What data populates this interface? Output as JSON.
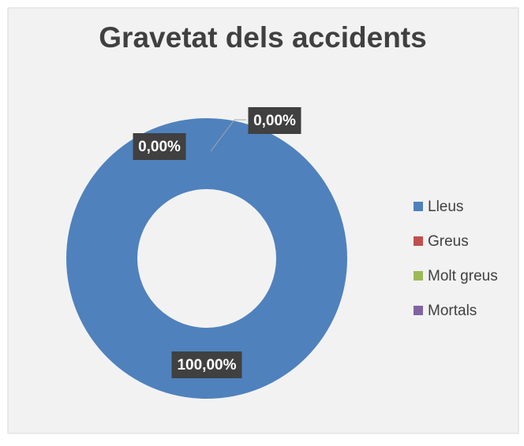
{
  "chart_data": {
    "type": "donut",
    "title": "Gravetat dels accidents",
    "categories": [
      "Lleus",
      "Greus",
      "Molt greus",
      "Mortals"
    ],
    "values": [
      100,
      0,
      0,
      0
    ],
    "value_labels": [
      "100,00%",
      "0,00%",
      "0,00%",
      null
    ],
    "colors": [
      "#4f81bd",
      "#c0504d",
      "#9bbb59",
      "#8064a2"
    ],
    "legend": "right"
  }
}
